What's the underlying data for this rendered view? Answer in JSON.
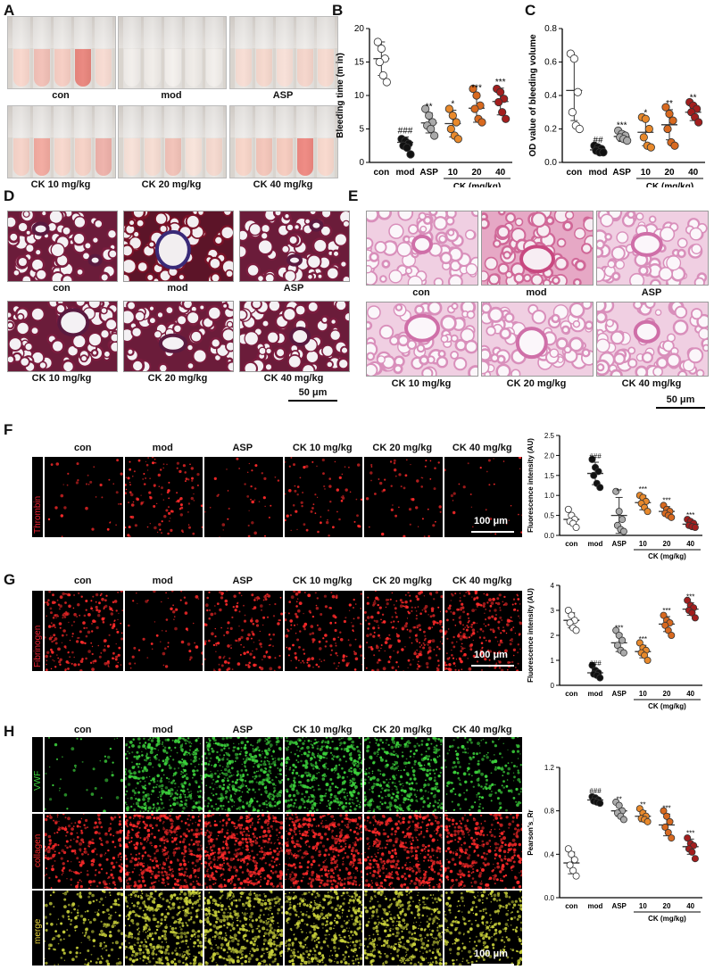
{
  "panels": {
    "A": {
      "label": "A",
      "captions": [
        "con",
        "mod",
        "ASP",
        "CK 10 mg/kg",
        "CK 20 mg/kg",
        "CK 40 mg/kg"
      ]
    },
    "D": {
      "label": "D",
      "captions": [
        "con",
        "mod",
        "ASP",
        "CK 10 mg/kg",
        "CK 20 mg/kg",
        "CK 40 mg/kg"
      ],
      "scale": "50 μm"
    },
    "E": {
      "label": "E",
      "captions": [
        "con",
        "mod",
        "ASP",
        "CK 10 mg/kg",
        "CK 20 mg/kg",
        "CK 40 mg/kg"
      ],
      "scale": "50 μm"
    },
    "F": {
      "label": "F",
      "columns": [
        "con",
        "mod",
        "ASP",
        "CK 10 mg/kg",
        "CK 20 mg/kg",
        "CK 40 mg/kg"
      ],
      "stain": "Thrombin",
      "scale": "100 μm"
    },
    "G": {
      "label": "G",
      "columns": [
        "con",
        "mod",
        "ASP",
        "CK 10 mg/kg",
        "CK 20 mg/kg",
        "CK 40 mg/kg"
      ],
      "stain": "Fibrinogen",
      "scale": "100 μm"
    },
    "H": {
      "label": "H",
      "columns": [
        "con",
        "mod",
        "ASP",
        "CK 10 mg/kg",
        "CK 20 mg/kg",
        "CK 40 mg/kg"
      ],
      "rows": [
        "VWF",
        "collagen",
        "merge"
      ],
      "scale": "100 μm"
    }
  },
  "colors": {
    "con": "#ffffff",
    "mod": "#111111",
    "ASP": "#aaaaaa",
    "CK10": "#e8892b",
    "CK20": "#d8691f",
    "CK40": "#a31e1e"
  },
  "chart_data": [
    {
      "id": "B",
      "label": "B",
      "type": "scatter",
      "ylabel": "Bleeding time (m in)",
      "ylim": [
        0,
        20
      ],
      "yticks": [
        0,
        5,
        10,
        15,
        20
      ],
      "categories": [
        "con",
        "mod",
        "ASP",
        "10",
        "20",
        "40"
      ],
      "group_label": "CK (mg/kg)",
      "means": [
        15.5,
        3,
        5.9,
        5.8,
        8.1,
        9.1
      ],
      "sd": [
        2.5,
        0.8,
        1.5,
        2.0,
        2.1,
        2.0
      ],
      "points": [
        [
          18,
          17,
          15.5,
          15,
          13,
          12
        ],
        [
          3.5,
          3.2,
          2.8,
          2.5,
          2.2,
          1.2
        ],
        [
          8,
          7,
          6,
          5.5,
          5,
          4
        ],
        [
          8,
          7,
          6,
          5,
          4,
          3.5
        ],
        [
          11,
          10,
          8.5,
          8,
          6.5,
          6
        ],
        [
          11,
          10.5,
          9.5,
          9,
          7.5,
          6.5
        ]
      ],
      "sig": [
        "",
        "###",
        "**",
        "*",
        "***",
        "***"
      ]
    },
    {
      "id": "C",
      "label": "C",
      "type": "scatter",
      "ylabel": "OD value of bleeding volume",
      "ylim": [
        0,
        0.8
      ],
      "yticks": [
        0.0,
        0.2,
        0.4,
        0.6,
        0.8
      ],
      "categories": [
        "con",
        "mod",
        "ASP",
        "10",
        "20",
        "40"
      ],
      "group_label": "CK (mg/kg)",
      "means": [
        0.43,
        0.075,
        0.155,
        0.18,
        0.225,
        0.3
      ],
      "sd": [
        0.18,
        0.02,
        0.03,
        0.08,
        0.09,
        0.05
      ],
      "points": [
        [
          0.65,
          0.62,
          0.42,
          0.3,
          0.22,
          0.2
        ],
        [
          0.1,
          0.09,
          0.08,
          0.07,
          0.06,
          0.06
        ],
        [
          0.19,
          0.17,
          0.16,
          0.15,
          0.14,
          0.13
        ],
        [
          0.27,
          0.26,
          0.2,
          0.15,
          0.1,
          0.09
        ],
        [
          0.33,
          0.29,
          0.25,
          0.2,
          0.12,
          0.1
        ],
        [
          0.36,
          0.34,
          0.32,
          0.3,
          0.27,
          0.24
        ]
      ],
      "sig": [
        "",
        "##",
        "***",
        "*",
        "**",
        "**"
      ]
    },
    {
      "id": "F",
      "type": "scatter",
      "ylabel": "Fluorescence intensity (AU)",
      "ylim": [
        0,
        2.5
      ],
      "yticks": [
        0.0,
        0.5,
        1.0,
        1.5,
        2.0,
        2.5
      ],
      "categories": [
        "con",
        "mod",
        "ASP",
        "10",
        "20",
        "40"
      ],
      "group_label": "CK (mg/kg)",
      "means": [
        0.4,
        1.55,
        0.5,
        0.82,
        0.6,
        0.28
      ],
      "sd": [
        0.12,
        0.28,
        0.45,
        0.18,
        0.12,
        0.08
      ],
      "points": [
        [
          0.65,
          0.5,
          0.4,
          0.35,
          0.3,
          0.2
        ],
        [
          1.9,
          1.7,
          1.6,
          1.5,
          1.3,
          1.2
        ],
        [
          1.1,
          0.6,
          0.4,
          0.25,
          0.15,
          0.1
        ],
        [
          1.0,
          0.95,
          0.85,
          0.8,
          0.7,
          0.6
        ],
        [
          0.75,
          0.65,
          0.6,
          0.55,
          0.5,
          0.45
        ],
        [
          0.4,
          0.35,
          0.3,
          0.25,
          0.22,
          0.2
        ]
      ],
      "sig": [
        "",
        "###",
        "**",
        "***",
        "***",
        "***"
      ]
    },
    {
      "id": "G",
      "type": "scatter",
      "ylabel": "Fluorescence intensity (AU)",
      "ylim": [
        0,
        4
      ],
      "yticks": [
        0,
        1,
        2,
        3,
        4
      ],
      "categories": [
        "con",
        "mod",
        "ASP",
        "10",
        "20",
        "40"
      ],
      "group_label": "CK (mg/kg)",
      "means": [
        2.6,
        0.5,
        1.7,
        1.35,
        2.45,
        3.05
      ],
      "sd": [
        0.3,
        0.15,
        0.35,
        0.25,
        0.3,
        0.25
      ],
      "points": [
        [
          3.0,
          2.8,
          2.6,
          2.5,
          2.3,
          2.2
        ],
        [
          0.8,
          0.6,
          0.5,
          0.45,
          0.4,
          0.3
        ],
        [
          2.2,
          2.0,
          1.8,
          1.6,
          1.4,
          1.3
        ],
        [
          1.7,
          1.5,
          1.4,
          1.3,
          1.2,
          1.0
        ],
        [
          2.8,
          2.6,
          2.5,
          2.4,
          2.2,
          2.0
        ],
        [
          3.4,
          3.2,
          3.1,
          3.0,
          2.9,
          2.7
        ]
      ],
      "sig": [
        "",
        "###",
        "***",
        "***",
        "***",
        "***"
      ]
    },
    {
      "id": "H",
      "type": "scatter",
      "ylabel": "Pearson's_Rr",
      "ylim": [
        0,
        1.2
      ],
      "yticks": [
        0.0,
        0.4,
        0.8,
        1.2
      ],
      "categories": [
        "con",
        "mod",
        "ASP",
        "10",
        "20",
        "40"
      ],
      "group_label": "CK (mg/kg)",
      "means": [
        0.32,
        0.9,
        0.8,
        0.75,
        0.67,
        0.47
      ],
      "sd": [
        0.1,
        0.03,
        0.05,
        0.05,
        0.1,
        0.07
      ],
      "points": [
        [
          0.45,
          0.4,
          0.35,
          0.3,
          0.25,
          0.2
        ],
        [
          0.93,
          0.92,
          0.9,
          0.89,
          0.88,
          0.87
        ],
        [
          0.88,
          0.85,
          0.8,
          0.78,
          0.75,
          0.72
        ],
        [
          0.82,
          0.78,
          0.75,
          0.73,
          0.72,
          0.7
        ],
        [
          0.8,
          0.75,
          0.7,
          0.65,
          0.6,
          0.55
        ],
        [
          0.55,
          0.5,
          0.48,
          0.45,
          0.42,
          0.36
        ]
      ],
      "sig": [
        "",
        "###",
        "**",
        "**",
        "***",
        "***"
      ]
    }
  ]
}
